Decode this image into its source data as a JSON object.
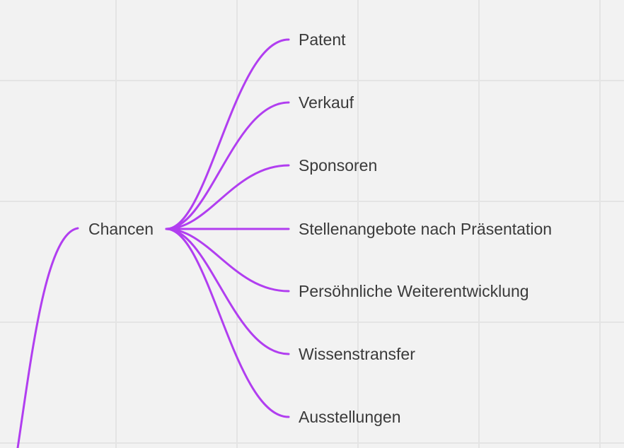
{
  "mindmap": {
    "branch_color": "#b13ef0",
    "topic": {
      "label": "Chancen"
    },
    "children": [
      {
        "label": "Patent"
      },
      {
        "label": "Verkauf"
      },
      {
        "label": "Sponsoren"
      },
      {
        "label": "Stellenangebote nach Präsentation"
      },
      {
        "label": "Persöhnliche Weiterentwicklung"
      },
      {
        "label": "Wissenstransfer"
      },
      {
        "label": "Ausstellungen"
      }
    ]
  }
}
